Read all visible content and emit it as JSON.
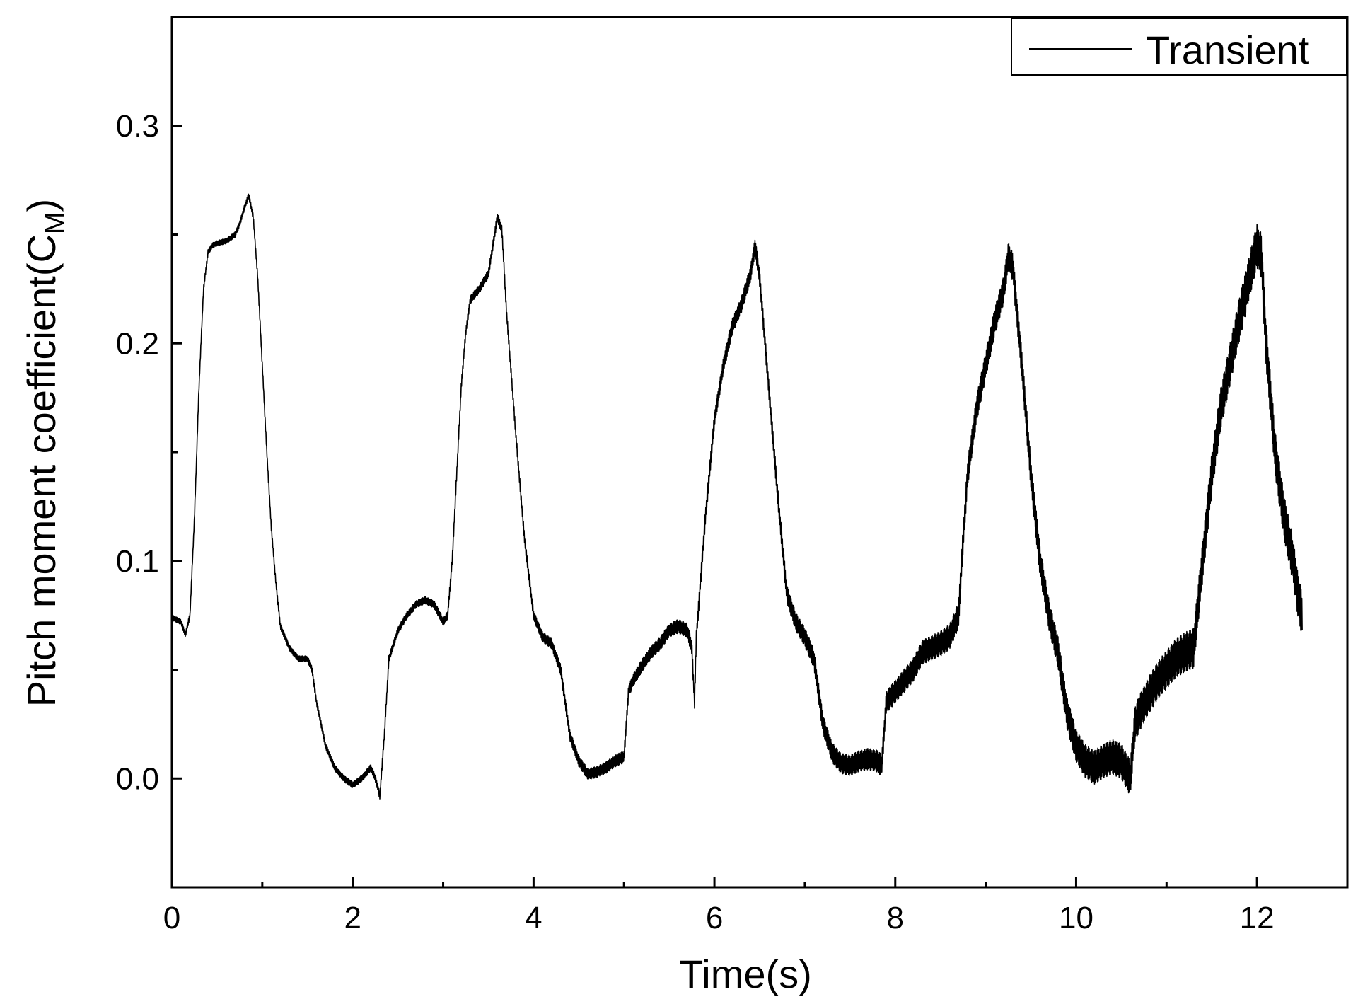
{
  "chart_data": {
    "type": "line",
    "title": "",
    "xlabel": "Time(s)",
    "ylabel": "Pitch moment coefficient(C",
    "ylabel_subscript": "M",
    "ylabel_close": ")",
    "xlim": [
      0,
      13
    ],
    "ylim": [
      -0.05,
      0.35
    ],
    "xticks": [
      0,
      2,
      4,
      6,
      8,
      10,
      12
    ],
    "xticks_minor": [
      1,
      3,
      5,
      7,
      9,
      11,
      13
    ],
    "yticks": [
      0.0,
      0.1,
      0.2,
      0.3
    ],
    "yticks_minor": [
      -0.05,
      0.05,
      0.15,
      0.25,
      0.35
    ],
    "xtick_labels": [
      "0",
      "2",
      "4",
      "6",
      "8",
      "10",
      "12"
    ],
    "ytick_labels": [
      "0.0",
      "0.1",
      "0.2",
      "0.3"
    ],
    "grid": false,
    "legend": {
      "position": "top-right",
      "entries": [
        "Transient"
      ]
    },
    "series": [
      {
        "name": "Transient",
        "color": "#000000",
        "x": [
          0.0,
          0.1,
          0.15,
          0.2,
          0.25,
          0.3,
          0.35,
          0.4,
          0.45,
          0.5,
          0.6,
          0.7,
          0.75,
          0.8,
          0.85,
          0.9,
          0.95,
          1.0,
          1.05,
          1.1,
          1.15,
          1.2,
          1.3,
          1.4,
          1.5,
          1.55,
          1.6,
          1.7,
          1.8,
          1.9,
          2.0,
          2.1,
          2.2,
          2.25,
          2.3,
          2.35,
          2.4,
          2.5,
          2.6,
          2.7,
          2.8,
          2.9,
          3.0,
          3.05,
          3.1,
          3.15,
          3.2,
          3.25,
          3.3,
          3.4,
          3.5,
          3.55,
          3.6,
          3.65,
          3.7,
          3.8,
          3.9,
          4.0,
          4.1,
          4.2,
          4.3,
          4.35,
          4.4,
          4.5,
          4.6,
          4.7,
          4.8,
          4.9,
          5.0,
          5.05,
          5.1,
          5.2,
          5.3,
          5.4,
          5.5,
          5.6,
          5.7,
          5.75,
          5.78,
          5.8,
          5.9,
          6.0,
          6.1,
          6.2,
          6.3,
          6.4,
          6.45,
          6.5,
          6.6,
          6.7,
          6.8,
          6.9,
          7.0,
          7.1,
          7.2,
          7.3,
          7.4,
          7.5,
          7.6,
          7.7,
          7.8,
          7.85,
          7.9,
          8.0,
          8.1,
          8.2,
          8.3,
          8.4,
          8.5,
          8.6,
          8.7,
          8.75,
          8.8,
          8.9,
          9.0,
          9.1,
          9.2,
          9.25,
          9.3,
          9.4,
          9.5,
          9.6,
          9.7,
          9.8,
          9.9,
          10.0,
          10.1,
          10.2,
          10.3,
          10.4,
          10.5,
          10.6,
          10.65,
          10.7,
          10.8,
          10.9,
          11.0,
          11.1,
          11.2,
          11.3,
          11.4,
          11.5,
          11.6,
          11.7,
          11.8,
          11.9,
          12.0,
          12.05,
          12.1,
          12.2,
          12.3,
          12.4,
          12.45,
          12.5
        ],
        "values": [
          0.074,
          0.072,
          0.066,
          0.075,
          0.12,
          0.18,
          0.225,
          0.242,
          0.245,
          0.246,
          0.247,
          0.25,
          0.255,
          0.262,
          0.268,
          0.258,
          0.23,
          0.19,
          0.15,
          0.115,
          0.09,
          0.07,
          0.06,
          0.055,
          0.055,
          0.05,
          0.035,
          0.015,
          0.005,
          0.0,
          -0.003,
          0.0,
          0.005,
          0.0,
          -0.008,
          0.02,
          0.055,
          0.068,
          0.075,
          0.08,
          0.082,
          0.08,
          0.072,
          0.075,
          0.1,
          0.14,
          0.18,
          0.205,
          0.22,
          0.225,
          0.232,
          0.245,
          0.258,
          0.252,
          0.215,
          0.16,
          0.11,
          0.075,
          0.065,
          0.062,
          0.05,
          0.035,
          0.02,
          0.008,
          0.002,
          0.003,
          0.005,
          0.008,
          0.01,
          0.04,
          0.045,
          0.052,
          0.058,
          0.062,
          0.068,
          0.07,
          0.068,
          0.06,
          0.035,
          0.065,
          0.12,
          0.165,
          0.19,
          0.208,
          0.218,
          0.232,
          0.245,
          0.23,
          0.18,
          0.13,
          0.085,
          0.072,
          0.065,
          0.055,
          0.025,
          0.012,
          0.007,
          0.006,
          0.008,
          0.009,
          0.008,
          0.006,
          0.035,
          0.04,
          0.045,
          0.05,
          0.058,
          0.06,
          0.062,
          0.065,
          0.075,
          0.11,
          0.14,
          0.17,
          0.19,
          0.21,
          0.225,
          0.24,
          0.235,
          0.19,
          0.14,
          0.1,
          0.075,
          0.058,
          0.03,
          0.015,
          0.008,
          0.005,
          0.008,
          0.01,
          0.008,
          0.0,
          0.025,
          0.03,
          0.038,
          0.045,
          0.05,
          0.055,
          0.058,
          0.06,
          0.1,
          0.14,
          0.17,
          0.19,
          0.21,
          0.228,
          0.245,
          0.24,
          0.2,
          0.15,
          0.12,
          0.1,
          0.085,
          0.075
        ]
      }
    ]
  }
}
